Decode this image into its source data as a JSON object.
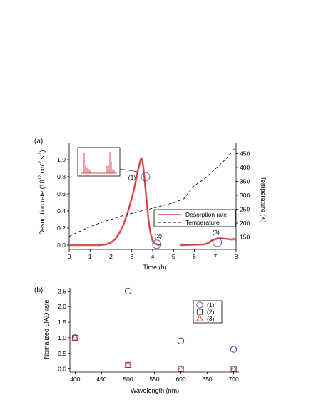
{
  "chart_data": [
    {
      "panel_label": "(a)",
      "type": "line",
      "xlabel": "Time (h)",
      "ylabel": "Desorption rate (10",
      "ylabel_sup1": "12",
      "ylabel_mid": " cm",
      "ylabel_sup2": "-2",
      "ylabel_mid2": " s",
      "ylabel_sup3": "-1",
      "ylabel_end": ")",
      "y2label": "Temperature (K)",
      "xlim": [
        0,
        8
      ],
      "ylim": [
        -0.05,
        1.2
      ],
      "y2lim": [
        105,
        490
      ],
      "xticks": [
        0,
        1,
        2,
        3,
        4,
        5,
        6,
        7,
        8
      ],
      "yticks": [
        0.0,
        0.2,
        0.4,
        0.6,
        0.8,
        1.0
      ],
      "ytick_labels": [
        "0.0",
        "0.2",
        "0.4",
        "0.6",
        "0.8",
        "1.0"
      ],
      "y2ticks": [
        150,
        200,
        250,
        300,
        350,
        400,
        450
      ],
      "series": [
        {
          "name": "Desorption rate",
          "color": "#e0474c",
          "axis": "left",
          "x": [
            0,
            1.0,
            1.5,
            1.8,
            2.0,
            2.2,
            2.4,
            2.6,
            2.8,
            3.0,
            3.1,
            3.2,
            3.3,
            3.4,
            3.45,
            3.5,
            3.55,
            3.6,
            3.7,
            3.8,
            3.9,
            4.0,
            4.1,
            4.2,
            4.3,
            4.4
          ],
          "y": [
            0,
            0,
            0,
            0.01,
            0.03,
            0.07,
            0.14,
            0.24,
            0.38,
            0.55,
            0.65,
            0.76,
            0.88,
            0.98,
            1.02,
            1.0,
            0.92,
            0.8,
            0.55,
            0.3,
            0.13,
            0.05,
            0.02,
            0.01,
            0,
            0
          ]
        },
        {
          "name": "Desorption rate",
          "color": "#e0474c",
          "axis": "left",
          "x": [
            5.3,
            6.0,
            6.5,
            6.7,
            6.8,
            6.9,
            7.0,
            7.1,
            7.2,
            7.3,
            7.4,
            7.5,
            7.6,
            7.7,
            7.8,
            7.9,
            8.0
          ],
          "y": [
            0,
            0.005,
            0.01,
            0.03,
            0.05,
            0.06,
            0.07,
            0.075,
            0.08,
            0.08,
            0.075,
            0.075,
            0.07,
            0.07,
            0.065,
            0.075,
            0.06
          ]
        },
        {
          "name": "Temperature",
          "color": "#000000",
          "dashed": true,
          "axis": "right",
          "x": [
            0,
            0.5,
            1,
            1.5,
            2,
            2.5,
            3,
            3.5,
            4,
            4.5,
            5,
            5.5,
            6,
            6.5,
            7,
            7.5,
            8
          ],
          "y": [
            152,
            170,
            187,
            201,
            213,
            225,
            235,
            245,
            253,
            263,
            273,
            288,
            335,
            360,
            395,
            430,
            475
          ]
        }
      ],
      "annotations": [
        {
          "text": "(1)",
          "x": 3.35,
          "y": 0.8
        },
        {
          "text": "(2)",
          "x": 4.2,
          "y": 0.01
        },
        {
          "text": "(3)",
          "x": 7.1,
          "y": 0.05
        }
      ],
      "legend": {
        "position": "bottom-right",
        "entries": [
          "Desorption rate",
          "Temperature"
        ]
      },
      "inset": true
    },
    {
      "panel_label": "(b)",
      "type": "scatter",
      "xlabel": "Wavelength (nm)",
      "ylabel": "Nomalized LIAD rate",
      "xlim": [
        390,
        710
      ],
      "ylim": [
        -0.1,
        2.6
      ],
      "xticks": [
        400,
        450,
        500,
        550,
        600,
        650,
        700
      ],
      "yticks": [
        0.0,
        0.5,
        1.0,
        1.5,
        2.0,
        2.5
      ],
      "ytick_labels": [
        "0.0",
        "0.5",
        "1.0",
        "1.5",
        "2.0",
        "2.5"
      ],
      "series": [
        {
          "name": "(1)",
          "marker": "circle",
          "color": "#3a3ab0",
          "x": [
            400,
            500,
            600,
            700
          ],
          "y": [
            1.0,
            2.5,
            0.9,
            0.63
          ]
        },
        {
          "name": "(2)",
          "marker": "square",
          "color": "#333333",
          "x": [
            400,
            500,
            600,
            700
          ],
          "y": [
            1.0,
            0.13,
            0.0,
            0.0
          ]
        },
        {
          "name": "(3)",
          "marker": "triangle",
          "color": "#d83a3a",
          "x": [
            400,
            500,
            600,
            700
          ],
          "y": [
            1.0,
            0.13,
            0.0,
            0.0
          ]
        }
      ],
      "legend": {
        "position": "top-right",
        "entries": [
          "(1)",
          "(2)",
          "(3)"
        ]
      }
    }
  ]
}
